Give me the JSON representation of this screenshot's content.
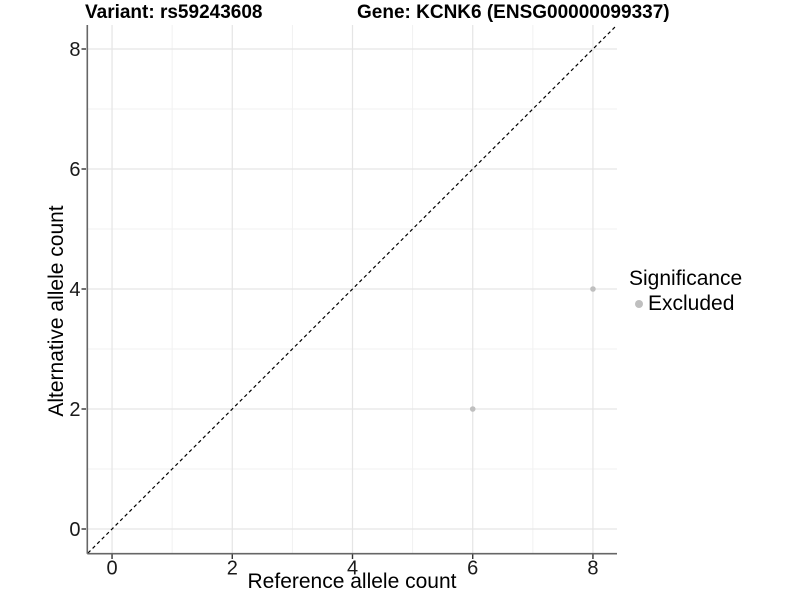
{
  "chart_data": {
    "type": "scatter",
    "titles": {
      "left": "Variant: rs59243608",
      "right": "Gene: KCNK6 (ENSG00000099337)"
    },
    "xlabel": "Reference allele count",
    "ylabel": "Alternative allele count",
    "xlim": [
      -0.4,
      8.4
    ],
    "ylim": [
      -0.4,
      8.4
    ],
    "xticks": [
      0,
      2,
      4,
      6,
      8
    ],
    "yticks": [
      0,
      2,
      4,
      6,
      8
    ],
    "minor_xticks": [
      1,
      3,
      5,
      7
    ],
    "minor_yticks": [
      1,
      3,
      5,
      7
    ],
    "grid": true,
    "series": [
      {
        "name": "Excluded",
        "color": "#bfbfbf",
        "points": [
          {
            "x": 6,
            "y": 2
          },
          {
            "x": 8,
            "y": 4
          }
        ]
      }
    ],
    "reference_line": {
      "type": "identity y=x",
      "style": "dashed",
      "color": "#000000"
    },
    "legend": {
      "title": "Significance",
      "position": "right",
      "entries": [
        "Excluded"
      ]
    }
  },
  "colors": {
    "background": "#ffffff",
    "grid_major": "#e5e5e5",
    "grid_minor": "#f1f1f1",
    "axis_line": "#666666",
    "tick_mark": "#333333",
    "tick_label": "#1a1a1a",
    "point": "#bfbfbf",
    "dashed_line": "#000000"
  }
}
